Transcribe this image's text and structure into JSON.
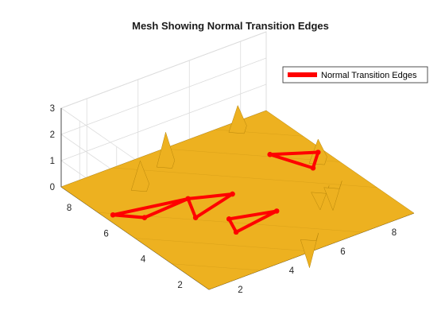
{
  "chart_data": {
    "type": "surface",
    "title": "Mesh Showing Normal Transition Edges",
    "xlabel": "",
    "ylabel": "",
    "zlabel": "",
    "xlim": [
      1,
      9
    ],
    "ylim": [
      1,
      9
    ],
    "zlim": [
      0,
      3
    ],
    "x_ticks": [
      "2",
      "4",
      "6",
      "8"
    ],
    "y_ticks": [
      "2",
      "4",
      "6",
      "8"
    ],
    "z_ticks": [
      "0",
      "1",
      "2",
      "3"
    ],
    "grid": true,
    "legend": {
      "position": "top-right",
      "entries": [
        "Normal Transition Edges"
      ]
    },
    "colors": {
      "surface": "#EDB120",
      "surface_edge": "#B8860B",
      "edges": "#FF0000",
      "grid": "#DCDCDC",
      "axis": "#262626"
    },
    "surface": {
      "base_z": 0,
      "spikes": [
        {
          "x": 3.0,
          "y": 7.5,
          "z": 1.0
        },
        {
          "x": 4.5,
          "y": 8.2,
          "z": 1.2
        },
        {
          "x": 8.5,
          "y": 5.5,
          "z": 0.8
        },
        {
          "x": 7.5,
          "y": 4.0,
          "z": -0.8
        },
        {
          "x": 8.0,
          "y": 4.0,
          "z": -1.0
        },
        {
          "x": 5.5,
          "y": 1.8,
          "z": -1.2
        },
        {
          "x": 7.6,
          "y": 8.6,
          "z": 0.9
        }
      ]
    },
    "series": [
      {
        "name": "Normal Transition Edges",
        "segments": [
          [
            [
              1.0,
              6.2,
              0.3
            ],
            [
              1.8,
              5.6,
              0.2
            ]
          ],
          [
            [
              1.8,
              5.6,
              0.2
            ],
            [
              3.5,
              5.6,
              0.3
            ]
          ],
          [
            [
              1.0,
              6.2,
              0.3
            ],
            [
              3.5,
              5.6,
              0.3
            ]
          ],
          [
            [
              3.5,
              5.6,
              0.3
            ],
            [
              3.0,
              4.5,
              0.3
            ]
          ],
          [
            [
              3.0,
              4.5,
              0.3
            ],
            [
              4.8,
              5.0,
              0.3
            ]
          ],
          [
            [
              3.5,
              5.6,
              0.3
            ],
            [
              4.8,
              5.0,
              0.3
            ]
          ],
          [
            [
              3.8,
              3.8,
              0.3
            ],
            [
              3.5,
              3.0,
              0.3
            ]
          ],
          [
            [
              3.5,
              3.0,
              0.3
            ],
            [
              5.3,
              3.3,
              0.3
            ]
          ],
          [
            [
              3.8,
              3.8,
              0.3
            ],
            [
              5.3,
              3.3,
              0.3
            ]
          ],
          [
            [
              7.2,
              6.3,
              0.3
            ],
            [
              8.5,
              5.5,
              0.3
            ]
          ],
          [
            [
              8.5,
              5.5,
              0.3
            ],
            [
              7.8,
              4.8,
              0.3
            ]
          ],
          [
            [
              7.2,
              6.3,
              0.3
            ],
            [
              7.8,
              4.8,
              0.3
            ]
          ]
        ]
      }
    ]
  }
}
